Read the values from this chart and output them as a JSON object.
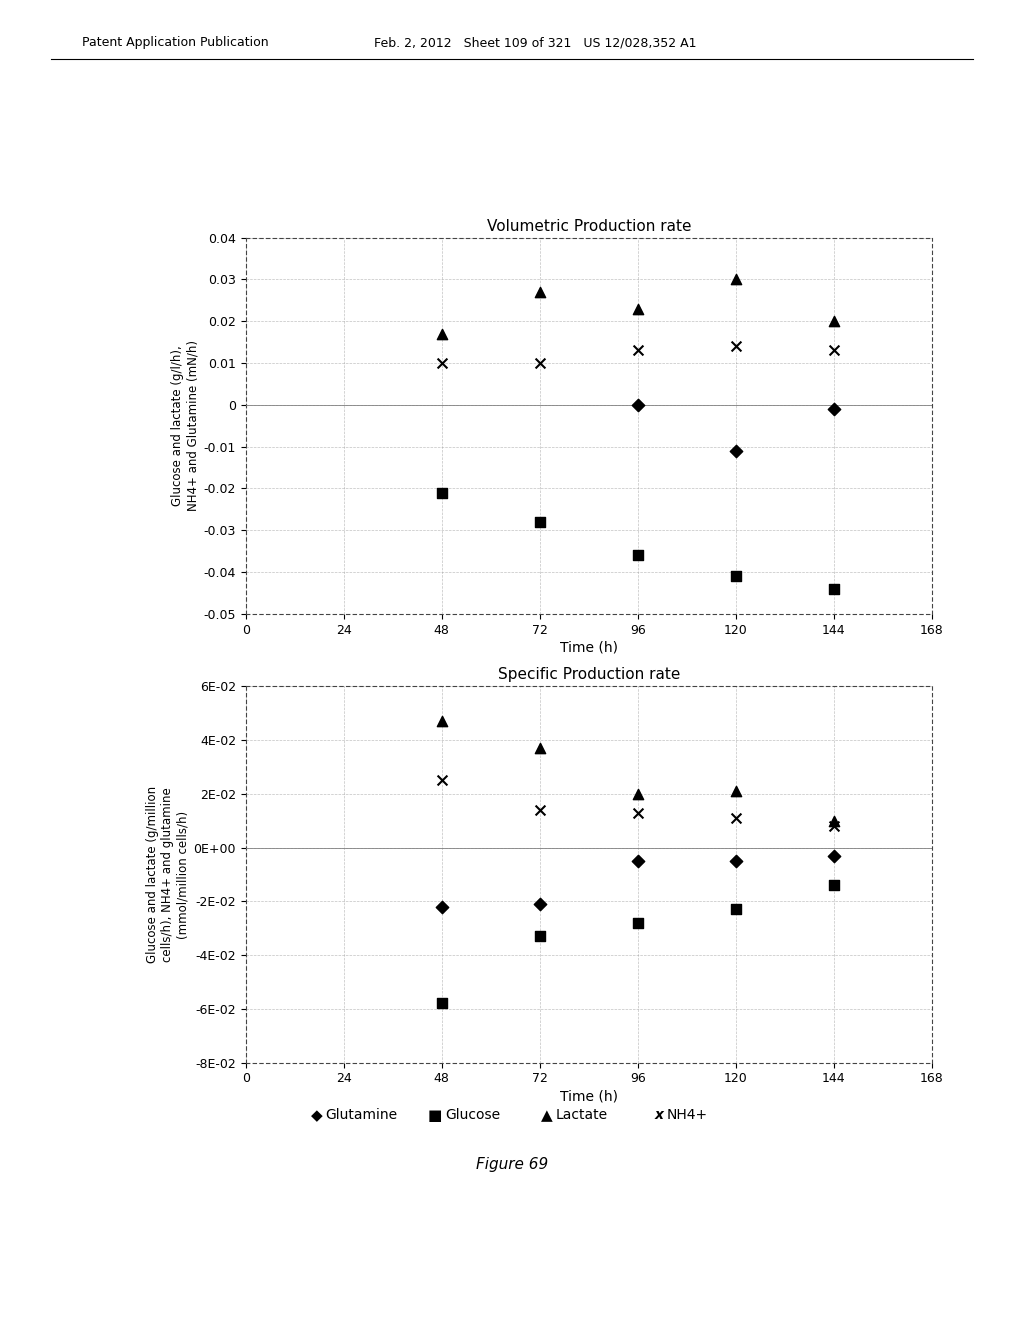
{
  "header_left": "Patent Application Publication",
  "header_mid": "Feb. 2, 2012   Sheet 109 of 321   US 12/028,352 A1",
  "figure_label": "Figure 69",
  "top_chart": {
    "title": "Volumetric Production rate",
    "xlabel": "Time (h)",
    "ylabel": "Glucose and lactate (g/l/h),\nNH4+ and Glutamine (mN/h)",
    "xlim": [
      0,
      168
    ],
    "ylim": [
      -0.05,
      0.04
    ],
    "xticks": [
      0,
      24,
      48,
      72,
      96,
      120,
      144,
      168
    ],
    "yticks": [
      -0.05,
      -0.04,
      -0.03,
      -0.02,
      -0.01,
      0,
      0.01,
      0.02,
      0.03,
      0.04
    ],
    "ytick_labels": [
      "-0.05",
      "-0.04",
      "-0.03",
      "-0.02",
      "-0.01",
      "0",
      "0.01",
      "0.02",
      "0.03",
      "0.04"
    ],
    "glutamine": {
      "x": [
        96,
        120,
        144
      ],
      "y": [
        0.0,
        -0.011,
        -0.001
      ]
    },
    "glucose": {
      "x": [
        48,
        72,
        96,
        120,
        144
      ],
      "y": [
        -0.021,
        -0.028,
        -0.036,
        -0.041,
        -0.044
      ]
    },
    "lactate": {
      "x": [
        48,
        72,
        96,
        120,
        144
      ],
      "y": [
        0.017,
        0.027,
        0.023,
        0.03,
        0.02
      ]
    },
    "nh4": {
      "x": [
        48,
        72,
        96,
        120,
        144
      ],
      "y": [
        0.01,
        0.01,
        0.013,
        0.014,
        0.013
      ]
    }
  },
  "bottom_chart": {
    "title": "Specific Production rate",
    "xlabel": "Time (h)",
    "ylabel": "Glucose and lactate (g/million\ncells/h), NH4+ and glutamine\n(mmol/million cells/h)",
    "xlim": [
      0,
      168
    ],
    "ylim": [
      -0.08,
      0.06
    ],
    "xticks": [
      0,
      24,
      48,
      72,
      96,
      120,
      144,
      168
    ],
    "yticks": [
      -0.08,
      -0.06,
      -0.04,
      -0.02,
      0.0,
      0.02,
      0.04,
      0.06
    ],
    "ytick_labels": [
      "-8E-02",
      "-6E-02",
      "-4E-02",
      "-2E-02",
      "0E+00",
      "2E-02",
      "4E-02",
      "6E-02"
    ],
    "glutamine": {
      "x": [
        48,
        72,
        96,
        120,
        144
      ],
      "y": [
        -0.022,
        -0.021,
        -0.005,
        -0.005,
        -0.003
      ]
    },
    "glucose": {
      "x": [
        48,
        72,
        96,
        120,
        144
      ],
      "y": [
        -0.058,
        -0.033,
        -0.028,
        -0.023,
        -0.014
      ]
    },
    "lactate": {
      "x": [
        48,
        72,
        96,
        120,
        144
      ],
      "y": [
        0.047,
        0.037,
        0.02,
        0.021,
        0.01
      ]
    },
    "nh4": {
      "x": [
        48,
        72,
        96,
        120,
        144
      ],
      "y": [
        0.025,
        0.014,
        0.013,
        0.011,
        0.008
      ]
    }
  },
  "legend": {
    "glutamine_label": "Glutamine",
    "glucose_label": "Glucose",
    "lactate_label": "Lactate",
    "nh4_label": "NH4+"
  },
  "colors": {
    "background": "#ffffff",
    "text": "#000000",
    "grid": "#999999"
  }
}
